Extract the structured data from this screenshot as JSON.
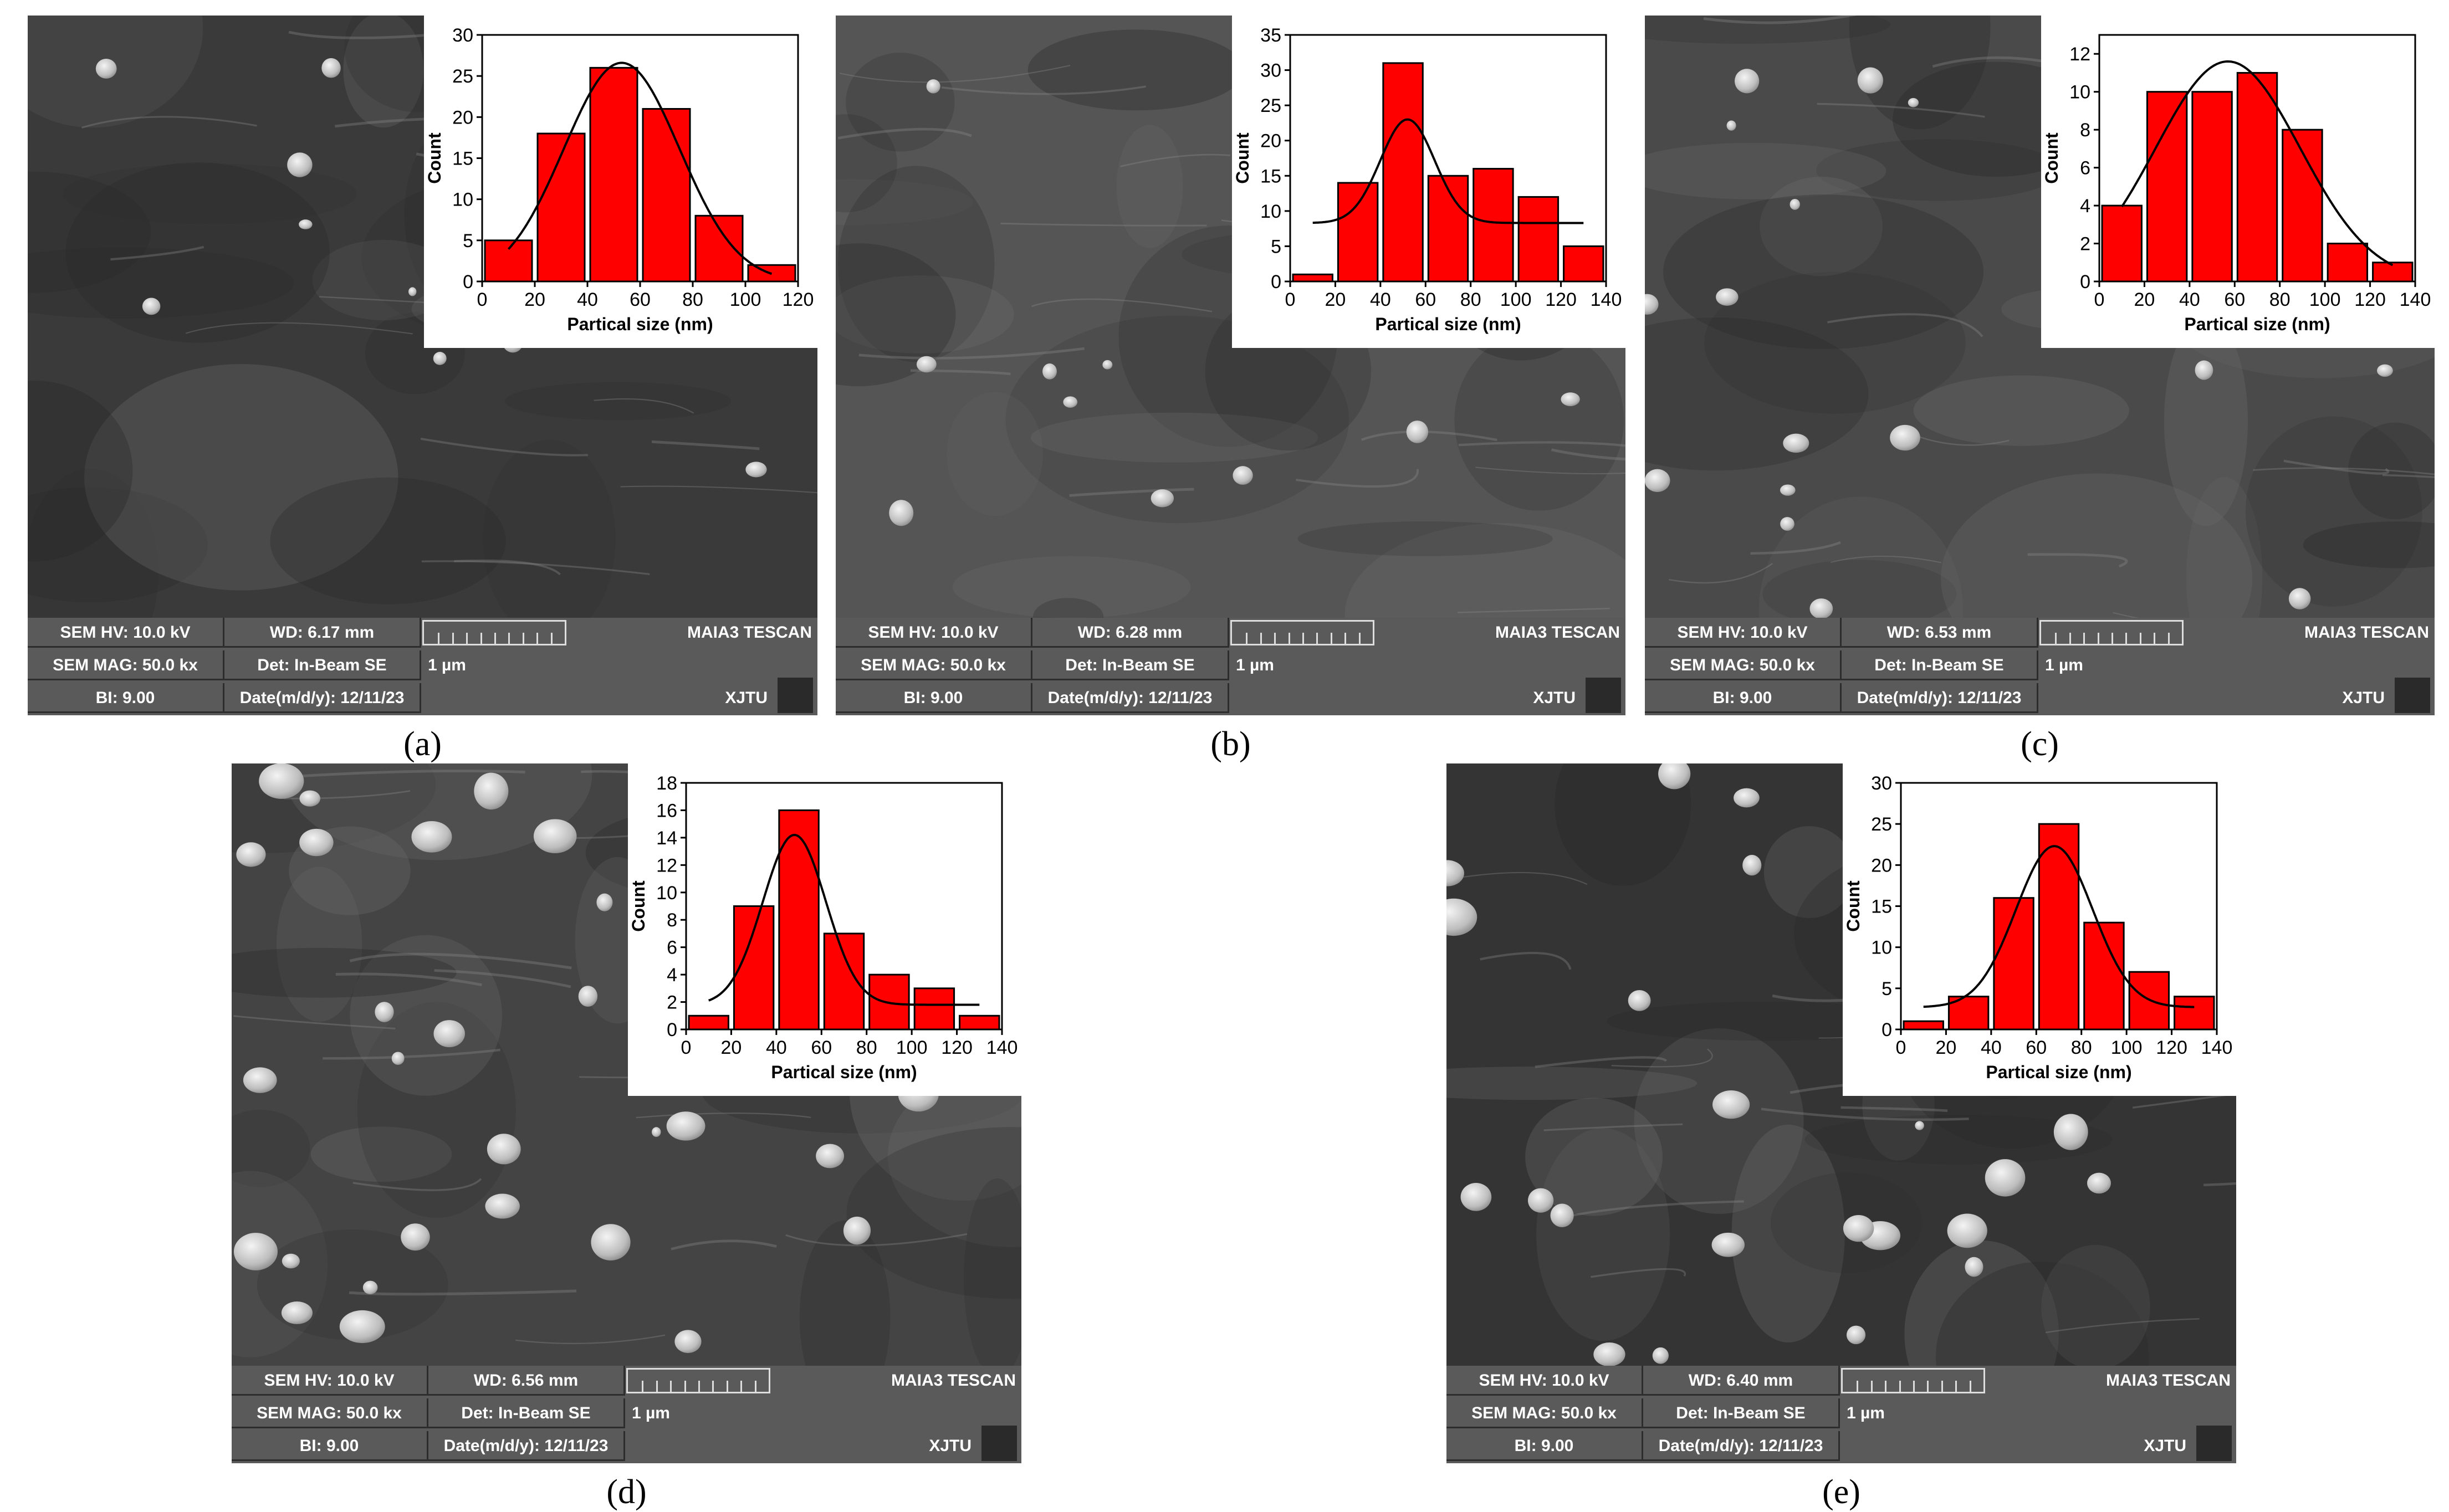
{
  "panels": [
    {
      "caption": "(a)",
      "sem": {
        "hv": "SEM HV: 10.0 kV",
        "wd": "WD: 6.17 mm",
        "mag": "SEM MAG: 50.0 kx",
        "det": "Det: In-Beam SE",
        "bi": "BI: 9.00",
        "date": "Date(m/d/y): 12/11/23",
        "scale": "1 µm",
        "brand": "MAIA3 TESCAN",
        "org": "XJTU"
      },
      "chart_data": {
        "type": "bar",
        "xlabel": "Partical size (nm)",
        "ylabel": "Count",
        "xlim": [
          0,
          120
        ],
        "ylim": [
          0,
          30
        ],
        "xticks": [
          0,
          20,
          40,
          60,
          80,
          100,
          120
        ],
        "yticks": [
          0,
          5,
          10,
          15,
          20,
          25,
          30
        ],
        "bin_centers": [
          10,
          30,
          50,
          70,
          90,
          110
        ],
        "bin_width": 20,
        "values": [
          5,
          18,
          26,
          21,
          8,
          2
        ],
        "fit": {
          "type": "gaussian",
          "mean": 53,
          "sd": 22,
          "peak": 26.6,
          "baseline": 0,
          "x_range": [
            10,
            110
          ]
        },
        "bar_color": "#ff0000"
      }
    },
    {
      "caption": "(b)",
      "sem": {
        "hv": "SEM HV: 10.0 kV",
        "wd": "WD: 6.28 mm",
        "mag": "SEM MAG: 50.0 kx",
        "det": "Det: In-Beam SE",
        "bi": "BI: 9.00",
        "date": "Date(m/d/y): 12/11/23",
        "scale": "1 µm",
        "brand": "MAIA3 TESCAN",
        "org": "XJTU"
      },
      "chart_data": {
        "type": "bar",
        "xlabel": "Partical size (nm)",
        "ylabel": "Count",
        "xlim": [
          0,
          140
        ],
        "ylim": [
          0,
          35
        ],
        "xticks": [
          0,
          20,
          40,
          60,
          80,
          100,
          120,
          140
        ],
        "yticks": [
          0,
          5,
          10,
          15,
          20,
          25,
          30,
          35
        ],
        "bin_centers": [
          10,
          30,
          50,
          70,
          90,
          110,
          130
        ],
        "bin_width": 20,
        "values": [
          1,
          14,
          31,
          15,
          16,
          12,
          5
        ],
        "fit": {
          "type": "gaussian",
          "mean": 52,
          "sd": 12,
          "peak": 23,
          "baseline": 8.3,
          "x_range": [
            10,
            130
          ]
        },
        "bar_color": "#ff0000"
      }
    },
    {
      "caption": "(c)",
      "sem": {
        "hv": "SEM HV: 10.0 kV",
        "wd": "WD: 6.53 mm",
        "mag": "SEM MAG: 50.0 kx",
        "det": "Det: In-Beam SE",
        "bi": "BI: 9.00",
        "date": "Date(m/d/y): 12/11/23",
        "scale": "1 µm",
        "brand": "MAIA3 TESCAN",
        "org": "XJTU"
      },
      "chart_data": {
        "type": "bar",
        "xlabel": "Partical size (nm)",
        "ylabel": "Count",
        "xlim": [
          0,
          140
        ],
        "ylim": [
          0,
          13
        ],
        "xticks": [
          0,
          20,
          40,
          60,
          80,
          100,
          120,
          140
        ],
        "yticks": [
          0,
          2,
          4,
          6,
          8,
          10,
          12
        ],
        "bin_centers": [
          10,
          30,
          50,
          70,
          90,
          110,
          130
        ],
        "bin_width": 20,
        "values": [
          4,
          10,
          10,
          11,
          8,
          2,
          1
        ],
        "fit": {
          "type": "gaussian",
          "mean": 57,
          "sd": 32,
          "peak": 11.6,
          "baseline": 0,
          "x_range": [
            10,
            130
          ]
        },
        "bar_color": "#ff0000"
      }
    },
    {
      "caption": "(d)",
      "sem": {
        "hv": "SEM HV: 10.0 kV",
        "wd": "WD: 6.56 mm",
        "mag": "SEM MAG: 50.0 kx",
        "det": "Det: In-Beam SE",
        "bi": "BI: 9.00",
        "date": "Date(m/d/y): 12/11/23",
        "scale": "1 µm",
        "brand": "MAIA3 TESCAN",
        "org": "XJTU"
      },
      "chart_data": {
        "type": "bar",
        "xlabel": "Partical size (nm)",
        "ylabel": "Count",
        "xlim": [
          0,
          140
        ],
        "ylim": [
          0,
          18
        ],
        "xticks": [
          0,
          20,
          40,
          60,
          80,
          100,
          120,
          140
        ],
        "yticks": [
          0,
          2,
          4,
          6,
          8,
          10,
          12,
          14,
          16,
          18
        ],
        "bin_centers": [
          10,
          30,
          50,
          70,
          90,
          110,
          130
        ],
        "bin_width": 20,
        "values": [
          1,
          9,
          16,
          7,
          4,
          3,
          1
        ],
        "fit": {
          "type": "gaussian",
          "mean": 48,
          "sd": 14,
          "peak": 14.2,
          "baseline": 1.8,
          "x_range": [
            10,
            130
          ]
        },
        "bar_color": "#ff0000"
      }
    },
    {
      "caption": "(e)",
      "sem": {
        "hv": "SEM HV: 10.0 kV",
        "wd": "WD: 6.40 mm",
        "mag": "SEM MAG: 50.0 kx",
        "det": "Det: In-Beam SE",
        "bi": "BI: 9.00",
        "date": "Date(m/d/y): 12/11/23",
        "scale": "1 µm",
        "brand": "MAIA3 TESCAN",
        "org": "XJTU"
      },
      "chart_data": {
        "type": "bar",
        "xlabel": "Partical size (nm)",
        "ylabel": "Count",
        "xlim": [
          0,
          140
        ],
        "ylim": [
          0,
          30
        ],
        "xticks": [
          0,
          20,
          40,
          60,
          80,
          100,
          120,
          140
        ],
        "yticks": [
          0,
          5,
          10,
          15,
          20,
          25,
          30
        ],
        "bin_centers": [
          10,
          30,
          50,
          70,
          90,
          110,
          130
        ],
        "bin_width": 20,
        "values": [
          1,
          4,
          16,
          25,
          13,
          7,
          4
        ],
        "fit": {
          "type": "gaussian",
          "mean": 68,
          "sd": 17,
          "peak": 22.3,
          "baseline": 2.7,
          "x_range": [
            10,
            130
          ]
        },
        "bar_color": "#ff0000"
      }
    }
  ]
}
